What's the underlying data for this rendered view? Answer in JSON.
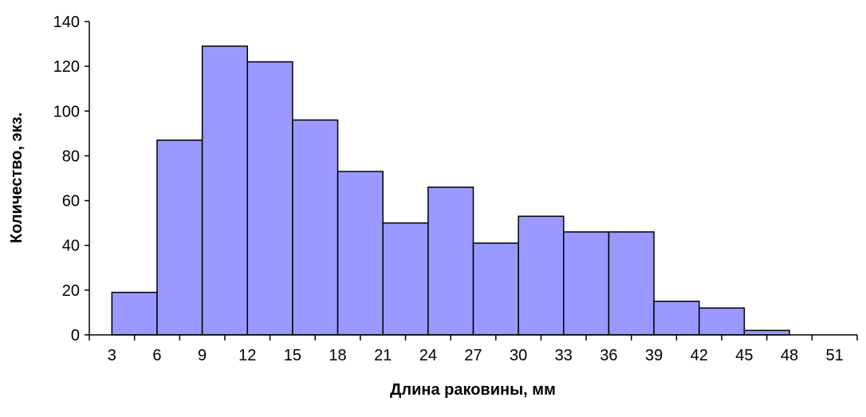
{
  "chart_data": {
    "type": "bar",
    "title": "",
    "xlabel": "Длина раковины, мм",
    "ylabel": "Количество, экз.",
    "x_ticks": [
      "3",
      "6",
      "9",
      "12",
      "15",
      "18",
      "21",
      "24",
      "27",
      "30",
      "33",
      "36",
      "39",
      "42",
      "45",
      "48",
      "51"
    ],
    "y_ticks": [
      "0",
      "20",
      "40",
      "60",
      "80",
      "100",
      "120",
      "140"
    ],
    "ylim": [
      0,
      140
    ],
    "bar_color": "#9999FF",
    "bar_edge_color": "#000000",
    "grid": false,
    "legend": "none",
    "categories": [
      "6",
      "9",
      "12",
      "15",
      "18",
      "21",
      "24",
      "27",
      "30",
      "33",
      "36",
      "39",
      "42",
      "45",
      "48"
    ],
    "values": [
      19,
      87,
      129,
      122,
      96,
      73,
      50,
      66,
      41,
      53,
      46,
      46,
      15,
      12,
      2
    ]
  }
}
